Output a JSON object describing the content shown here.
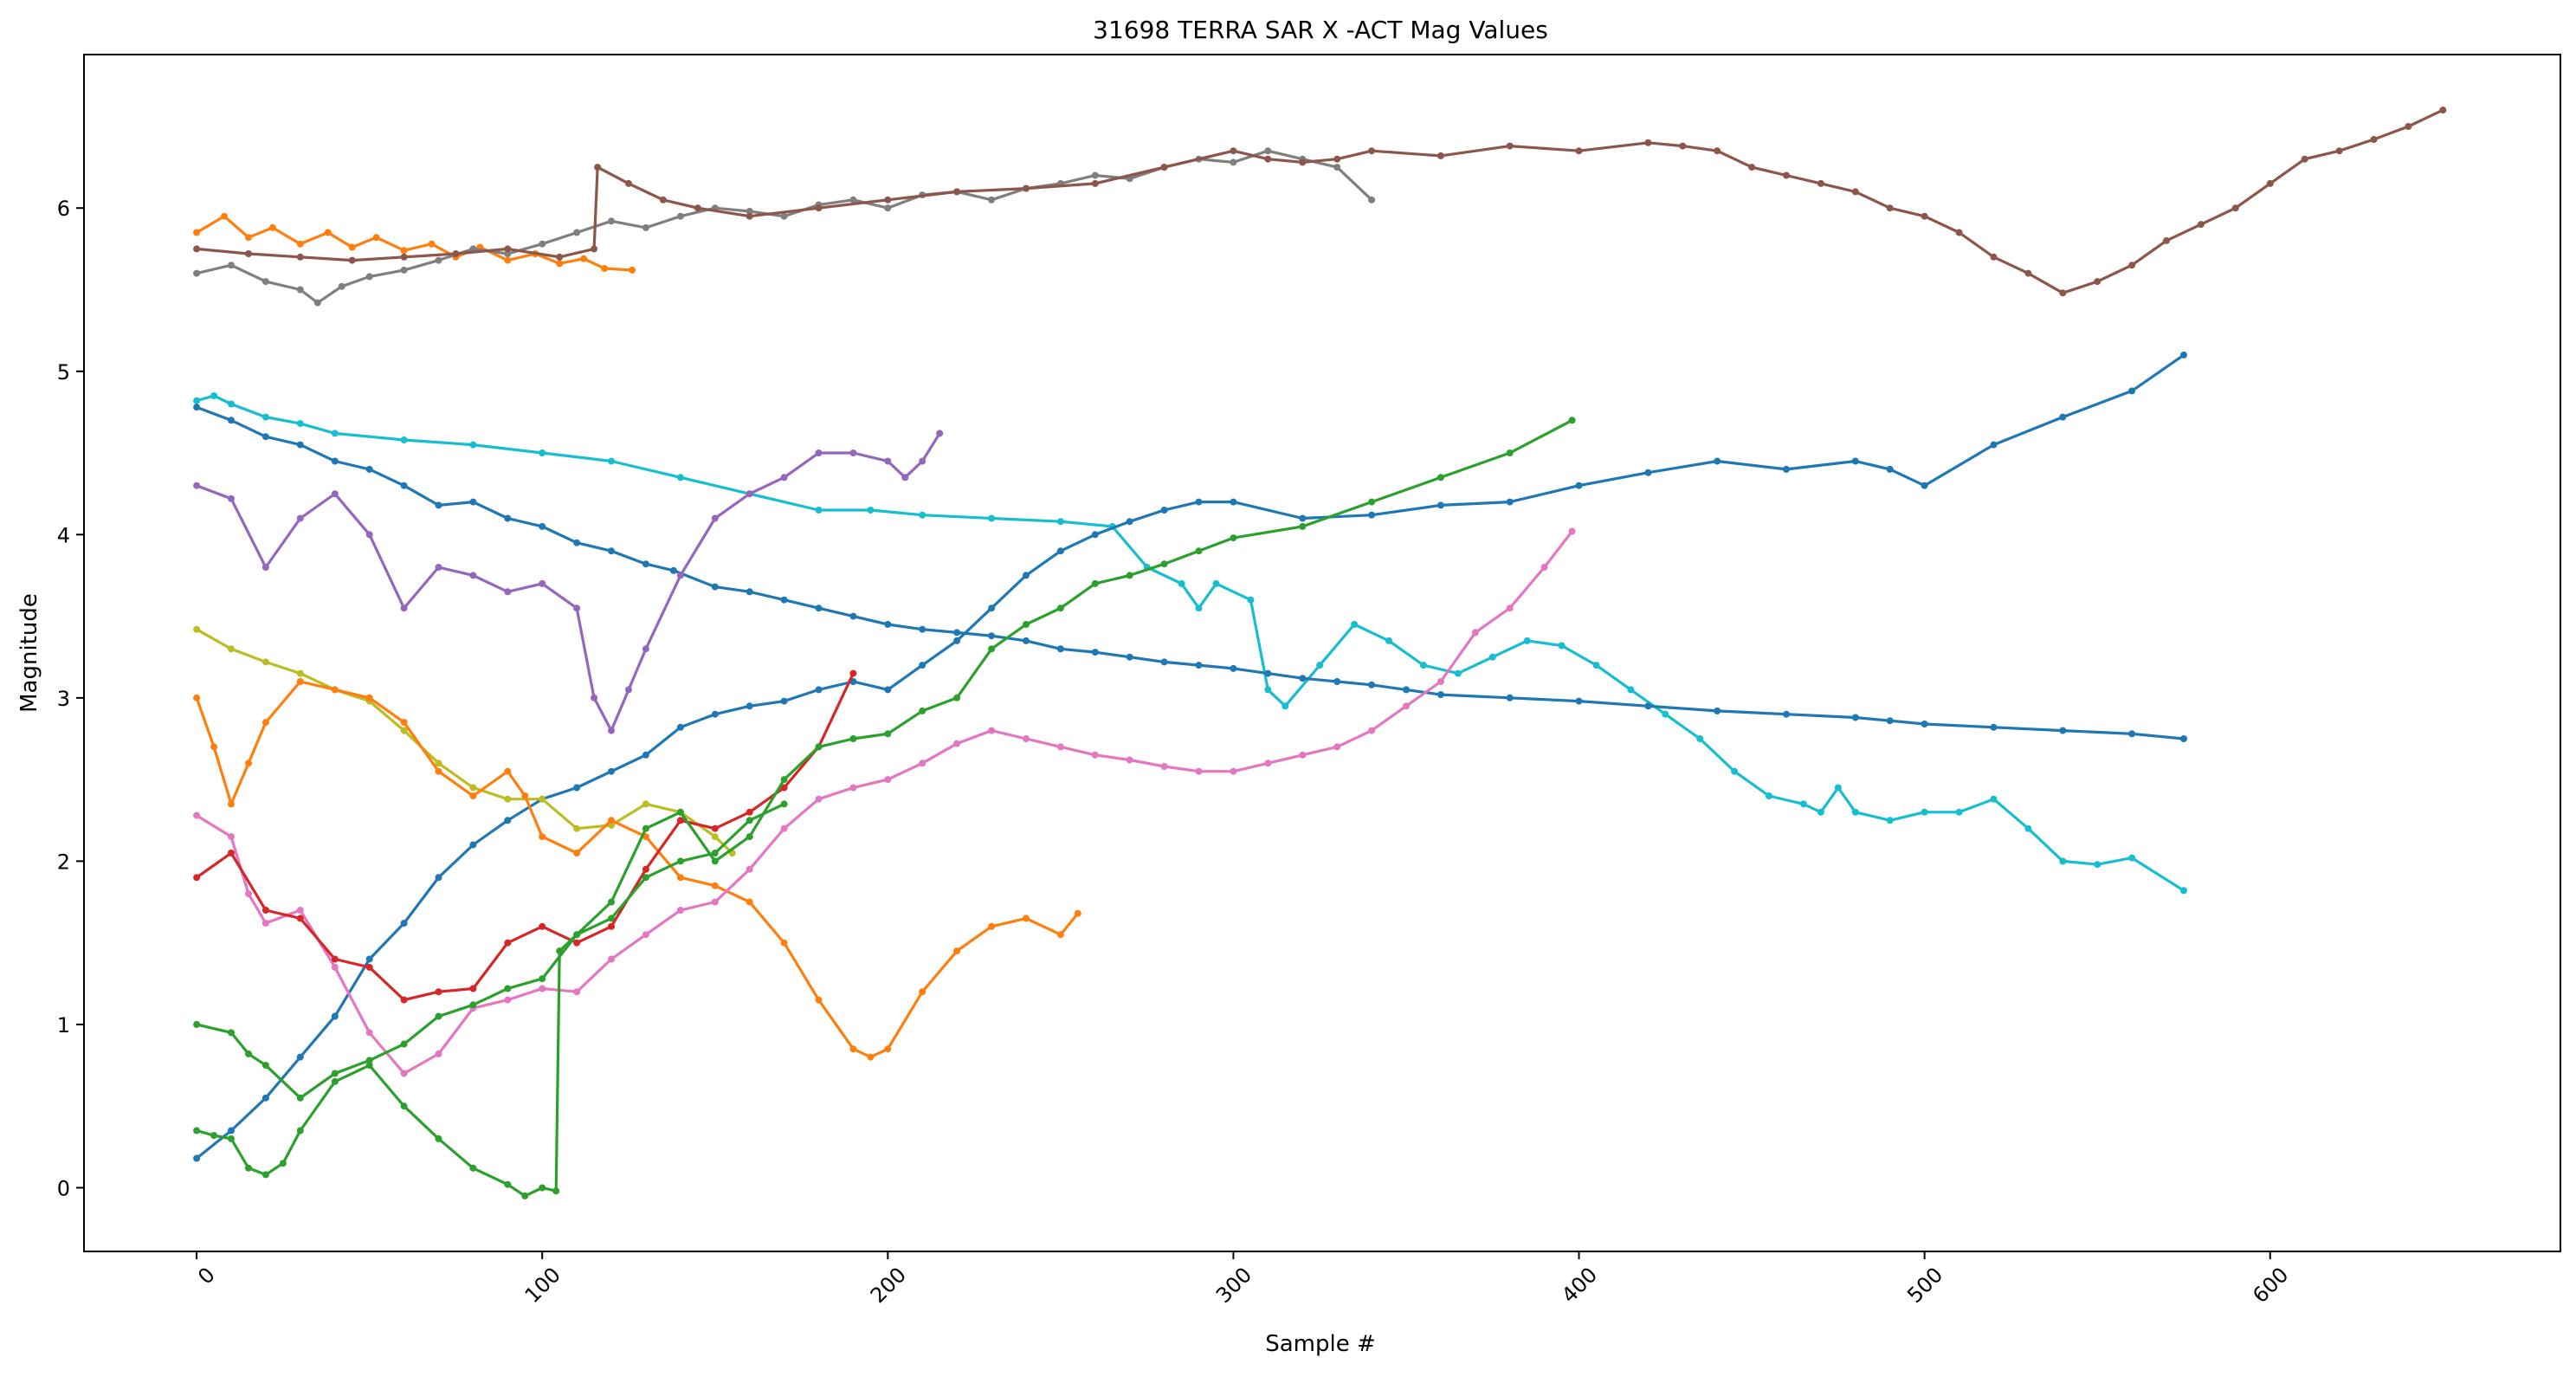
{
  "chart_data": {
    "type": "line",
    "title": "31698 TERRA SAR X -ACT Mag Values",
    "xlabel": "Sample #",
    "ylabel": "Magnitude",
    "xlim": [
      -32.6,
      684
    ],
    "ylim": [
      -0.39,
      6.94
    ],
    "xticks": [
      0,
      100,
      200,
      300,
      400,
      500,
      600
    ],
    "yticks": [
      0,
      1,
      2,
      3,
      4,
      5,
      6
    ],
    "xtick_rotation": 45,
    "markers": true,
    "grid": false,
    "legend": "none",
    "series": [
      {
        "color": "#ff7f0e",
        "x": [
          0,
          8,
          15,
          22,
          30,
          38,
          45,
          52,
          60,
          68,
          75,
          82,
          90,
          98,
          105,
          112,
          118,
          126
        ],
        "y": [
          5.85,
          5.95,
          5.82,
          5.88,
          5.78,
          5.85,
          5.76,
          5.82,
          5.74,
          5.78,
          5.7,
          5.76,
          5.68,
          5.72,
          5.66,
          5.69,
          5.63,
          5.62
        ]
      },
      {
        "color": "#7f7f7f",
        "x": [
          0,
          10,
          20,
          30,
          35,
          42,
          50,
          60,
          70,
          80,
          90,
          100,
          110,
          120,
          130,
          140,
          150,
          160,
          170,
          180,
          190,
          200,
          210,
          220,
          230,
          240,
          250,
          260,
          270,
          280,
          290,
          300,
          310,
          320,
          330,
          340
        ],
        "y": [
          5.6,
          5.65,
          5.55,
          5.5,
          5.42,
          5.52,
          5.58,
          5.62,
          5.68,
          5.75,
          5.72,
          5.78,
          5.85,
          5.92,
          5.88,
          5.95,
          6.0,
          5.98,
          5.95,
          6.02,
          6.05,
          6.0,
          6.08,
          6.1,
          6.05,
          6.12,
          6.15,
          6.2,
          6.18,
          6.25,
          6.3,
          6.28,
          6.35,
          6.3,
          6.25,
          6.05
        ]
      },
      {
        "color": "#8c564b",
        "x": [
          0,
          15,
          30,
          45,
          60,
          75,
          90,
          105,
          115,
          116,
          125,
          135,
          145,
          160,
          180,
          200,
          220,
          240,
          260,
          280,
          300,
          310,
          320,
          330,
          340,
          360,
          380,
          400,
          420,
          430,
          440,
          450,
          460,
          470,
          480,
          490,
          500,
          510,
          520,
          530,
          540,
          550,
          560,
          570,
          580,
          590,
          600,
          610,
          620,
          630,
          640,
          650
        ],
        "y": [
          5.75,
          5.72,
          5.7,
          5.68,
          5.7,
          5.72,
          5.75,
          5.7,
          5.75,
          6.25,
          6.15,
          6.05,
          6.0,
          5.95,
          6.0,
          6.05,
          6.1,
          6.12,
          6.15,
          6.25,
          6.35,
          6.3,
          6.28,
          6.3,
          6.35,
          6.32,
          6.38,
          6.35,
          6.4,
          6.38,
          6.35,
          6.25,
          6.2,
          6.15,
          6.1,
          6.0,
          5.95,
          5.85,
          5.7,
          5.6,
          5.48,
          5.55,
          5.65,
          5.8,
          5.9,
          6.0,
          6.15,
          6.3,
          6.35,
          6.42,
          6.5,
          6.6
        ]
      },
      {
        "color": "#17becf",
        "x": [
          0,
          5,
          10,
          20,
          30,
          40,
          60,
          80,
          100,
          120,
          140,
          160,
          180,
          195,
          210,
          230,
          250,
          265,
          275,
          285,
          290,
          295,
          305,
          310,
          315,
          325,
          335,
          345,
          355,
          365,
          375,
          385,
          395,
          405,
          415,
          425,
          435,
          445,
          455,
          465,
          470,
          475,
          480,
          490,
          500,
          510,
          520,
          530,
          540,
          550,
          560,
          575
        ],
        "y": [
          4.82,
          4.85,
          4.8,
          4.72,
          4.68,
          4.62,
          4.58,
          4.55,
          4.5,
          4.45,
          4.35,
          4.25,
          4.15,
          4.15,
          4.12,
          4.1,
          4.08,
          4.05,
          3.8,
          3.7,
          3.55,
          3.7,
          3.6,
          3.05,
          2.95,
          3.2,
          3.45,
          3.35,
          3.2,
          3.15,
          3.25,
          3.35,
          3.32,
          3.2,
          3.05,
          2.9,
          2.75,
          2.55,
          2.4,
          2.35,
          2.3,
          2.45,
          2.3,
          2.25,
          2.3,
          2.3,
          2.38,
          2.2,
          2.0,
          1.98,
          2.02,
          1.82
        ]
      },
      {
        "color": "#1f77b4",
        "x": [
          0,
          10,
          20,
          30,
          40,
          50,
          60,
          70,
          80,
          90,
          100,
          110,
          120,
          130,
          138,
          150,
          160,
          170,
          180,
          190,
          200,
          210,
          220,
          230,
          240,
          250,
          260,
          270,
          280,
          290,
          300,
          310,
          320,
          330,
          340,
          350,
          360,
          380,
          400,
          420,
          440,
          460,
          480,
          490,
          500,
          520,
          540,
          560,
          575
        ],
        "y": [
          4.78,
          4.7,
          4.6,
          4.55,
          4.45,
          4.4,
          4.3,
          4.18,
          4.2,
          4.1,
          4.05,
          3.95,
          3.9,
          3.82,
          3.78,
          3.68,
          3.65,
          3.6,
          3.55,
          3.5,
          3.45,
          3.42,
          3.4,
          3.38,
          3.35,
          3.3,
          3.28,
          3.25,
          3.22,
          3.2,
          3.18,
          3.15,
          3.12,
          3.1,
          3.08,
          3.05,
          3.02,
          3.0,
          2.98,
          2.95,
          2.92,
          2.9,
          2.88,
          2.86,
          2.84,
          2.82,
          2.8,
          2.78,
          2.75
        ]
      },
      {
        "color": "#1f77b4",
        "x": [
          0,
          10,
          20,
          30,
          40,
          50,
          60,
          70,
          80,
          90,
          100,
          110,
          120,
          130,
          140,
          150,
          160,
          170,
          180,
          190,
          200,
          210,
          220,
          230,
          240,
          250,
          260,
          270,
          280,
          290,
          300,
          320,
          340,
          360,
          380,
          400,
          420,
          440,
          460,
          480,
          490,
          500,
          520,
          540,
          560,
          575
        ],
        "y": [
          0.18,
          0.35,
          0.55,
          0.8,
          1.05,
          1.4,
          1.62,
          1.9,
          2.1,
          2.25,
          2.38,
          2.45,
          2.55,
          2.65,
          2.82,
          2.9,
          2.95,
          2.98,
          3.05,
          3.1,
          3.05,
          3.2,
          3.35,
          3.55,
          3.75,
          3.9,
          4.0,
          4.08,
          4.15,
          4.2,
          4.2,
          4.1,
          4.12,
          4.18,
          4.2,
          4.3,
          4.38,
          4.45,
          4.4,
          4.45,
          4.4,
          4.3,
          4.55,
          4.72,
          4.88,
          5.1
        ]
      },
      {
        "color": "#9467bd",
        "x": [
          0,
          10,
          20,
          30,
          40,
          50,
          60,
          70,
          80,
          90,
          100,
          110,
          115,
          120,
          125,
          130,
          140,
          150,
          160,
          170,
          180,
          190,
          200,
          205,
          210,
          215
        ],
        "y": [
          4.3,
          4.22,
          3.8,
          4.1,
          4.25,
          4.0,
          3.55,
          3.8,
          3.75,
          3.65,
          3.7,
          3.55,
          3.0,
          2.8,
          3.05,
          3.3,
          3.75,
          4.1,
          4.25,
          4.35,
          4.5,
          4.5,
          4.45,
          4.35,
          4.45,
          4.62
        ]
      },
      {
        "color": "#bcbd22",
        "x": [
          0,
          10,
          20,
          30,
          40,
          50,
          60,
          70,
          80,
          90,
          100,
          110,
          120,
          130,
          140,
          150,
          155
        ],
        "y": [
          3.42,
          3.3,
          3.22,
          3.15,
          3.05,
          2.98,
          2.8,
          2.6,
          2.45,
          2.38,
          2.38,
          2.2,
          2.22,
          2.35,
          2.3,
          2.15,
          2.05
        ]
      },
      {
        "color": "#ff7f0e",
        "x": [
          0,
          5,
          10,
          15,
          20,
          30,
          40,
          50,
          60,
          70,
          80,
          90,
          95,
          100,
          110,
          120,
          130,
          140,
          150,
          160,
          170,
          180,
          190,
          195,
          200,
          210,
          220,
          230,
          240,
          250,
          255
        ],
        "y": [
          3.0,
          2.7,
          2.35,
          2.6,
          2.85,
          3.1,
          3.05,
          3.0,
          2.85,
          2.55,
          2.4,
          2.55,
          2.4,
          2.15,
          2.05,
          2.25,
          2.15,
          1.9,
          1.85,
          1.75,
          1.5,
          1.15,
          0.85,
          0.8,
          0.85,
          1.2,
          1.45,
          1.6,
          1.65,
          1.55,
          1.68
        ]
      },
      {
        "color": "#e377c2",
        "x": [
          0,
          10,
          15,
          20,
          30,
          40,
          50,
          60,
          70,
          80,
          90,
          100,
          110,
          120,
          130,
          140,
          150,
          160,
          170,
          180,
          190,
          200,
          210,
          220,
          230,
          240,
          250,
          260,
          270,
          280,
          290,
          300,
          310,
          320,
          330,
          340,
          350,
          360,
          370,
          380,
          390,
          398
        ],
        "y": [
          2.28,
          2.15,
          1.8,
          1.62,
          1.7,
          1.35,
          0.95,
          0.7,
          0.82,
          1.1,
          1.15,
          1.22,
          1.2,
          1.4,
          1.55,
          1.7,
          1.75,
          1.95,
          2.2,
          2.38,
          2.45,
          2.5,
          2.6,
          2.72,
          2.8,
          2.75,
          2.7,
          2.65,
          2.62,
          2.58,
          2.55,
          2.55,
          2.6,
          2.65,
          2.7,
          2.8,
          2.95,
          3.1,
          3.4,
          3.55,
          3.8,
          4.02
        ]
      },
      {
        "color": "#d62728",
        "x": [
          0,
          10,
          20,
          30,
          40,
          50,
          60,
          70,
          80,
          90,
          100,
          110,
          120,
          130,
          140,
          150,
          160,
          170,
          180,
          190
        ],
        "y": [
          1.9,
          2.05,
          1.7,
          1.65,
          1.4,
          1.35,
          1.15,
          1.2,
          1.22,
          1.5,
          1.6,
          1.5,
          1.6,
          1.95,
          2.25,
          2.2,
          2.3,
          2.45,
          2.7,
          3.15
        ]
      },
      {
        "color": "#2ca02c",
        "x": [
          0,
          10,
          15,
          20,
          30,
          40,
          50,
          60,
          70,
          80,
          90,
          100,
          110,
          120,
          130,
          140,
          150,
          160,
          170,
          180,
          190,
          200,
          210,
          220,
          230,
          240,
          250,
          260,
          270,
          280,
          290,
          300,
          320,
          340,
          360,
          380,
          398
        ],
        "y": [
          1.0,
          0.95,
          0.82,
          0.75,
          0.55,
          0.7,
          0.78,
          0.88,
          1.05,
          1.12,
          1.22,
          1.28,
          1.55,
          1.75,
          2.2,
          2.3,
          2.0,
          2.15,
          2.5,
          2.7,
          2.75,
          2.78,
          2.92,
          3.0,
          3.3,
          3.45,
          3.55,
          3.7,
          3.75,
          3.82,
          3.9,
          3.98,
          4.05,
          4.2,
          4.35,
          4.5,
          4.7
        ]
      },
      {
        "color": "#2ca02c",
        "x": [
          0,
          5,
          10,
          15,
          20,
          25,
          30,
          40,
          50,
          60,
          70,
          80,
          90,
          95,
          100,
          104,
          105,
          110,
          120,
          130,
          140,
          150,
          160,
          170
        ],
        "y": [
          0.35,
          0.32,
          0.3,
          0.12,
          0.08,
          0.15,
          0.35,
          0.65,
          0.75,
          0.5,
          0.3,
          0.12,
          0.02,
          -0.05,
          0.0,
          -0.02,
          1.45,
          1.55,
          1.65,
          1.9,
          2.0,
          2.05,
          2.25,
          2.35
        ]
      }
    ]
  }
}
